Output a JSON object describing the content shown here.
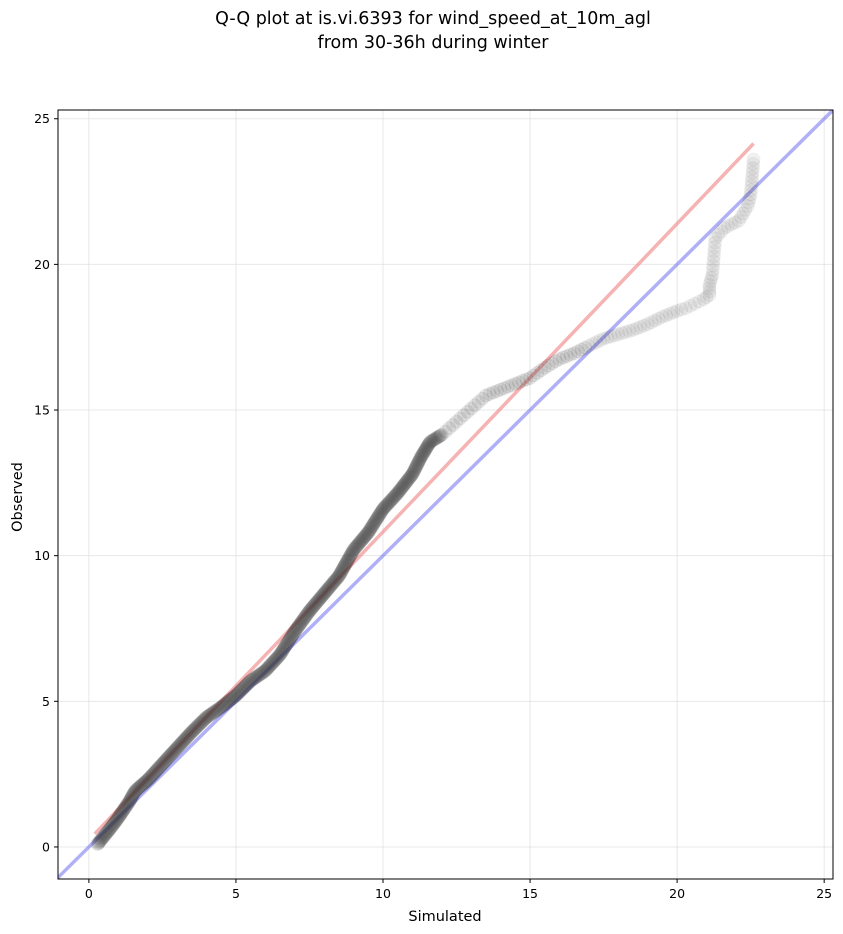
{
  "chart_data": {
    "type": "scatter",
    "title": [
      "Q-Q plot at is.vi.6393 for wind_speed_at_10m_agl",
      "from 30-36h during winter"
    ],
    "xlabel": "Simulated",
    "ylabel": "Observed",
    "xlim": [
      -1.05,
      25.3
    ],
    "ylim": [
      -1.1,
      25.3
    ],
    "xticks": [
      0,
      5,
      10,
      15,
      20,
      25
    ],
    "yticks": [
      0,
      5,
      10,
      15,
      20,
      25
    ],
    "grid": true,
    "colors": {
      "points": "#333333",
      "fit_line": "#f08080",
      "identity_line": "#6f6ff0"
    },
    "fit_line": {
      "x": [
        0.2,
        22.6
      ],
      "y": [
        0.45,
        24.15
      ]
    },
    "identity_line": {
      "x": [
        -1.05,
        25.3
      ],
      "y": [
        -1.05,
        25.3
      ]
    },
    "quantiles": {
      "x": [
        0.3,
        0.7,
        1.0,
        1.2,
        1.4,
        1.5,
        1.6,
        2.0,
        2.5,
        3.0,
        3.5,
        4.0,
        4.5,
        5.0,
        5.5,
        6.0,
        6.5,
        7.0,
        7.5,
        8.0,
        8.5,
        9.0,
        9.5,
        10.0,
        10.5,
        11.0,
        11.3,
        11.6,
        12.0,
        12.5,
        13.0,
        13.5,
        14.0,
        14.5,
        15.0,
        15.5,
        16.0,
        16.5,
        17.0,
        17.5,
        18.0,
        18.5,
        19.0,
        19.5,
        20.0,
        20.3,
        20.6,
        20.9,
        21.1,
        21.1,
        21.2,
        21.3,
        21.6,
        22.1,
        22.4,
        22.5,
        22.6
      ],
      "y": [
        0.1,
        0.6,
        1.0,
        1.3,
        1.6,
        1.8,
        1.95,
        2.3,
        2.85,
        3.4,
        3.95,
        4.45,
        4.8,
        5.2,
        5.7,
        6.05,
        6.6,
        7.4,
        8.1,
        8.7,
        9.3,
        10.2,
        10.8,
        11.6,
        12.15,
        12.8,
        13.4,
        13.9,
        14.15,
        14.6,
        15.05,
        15.5,
        15.7,
        15.9,
        16.1,
        16.45,
        16.75,
        16.95,
        17.2,
        17.45,
        17.6,
        17.75,
        17.95,
        18.2,
        18.4,
        18.5,
        18.65,
        18.8,
        18.95,
        19.3,
        19.65,
        20.9,
        21.25,
        21.5,
        22.0,
        22.4,
        23.6
      ]
    }
  }
}
